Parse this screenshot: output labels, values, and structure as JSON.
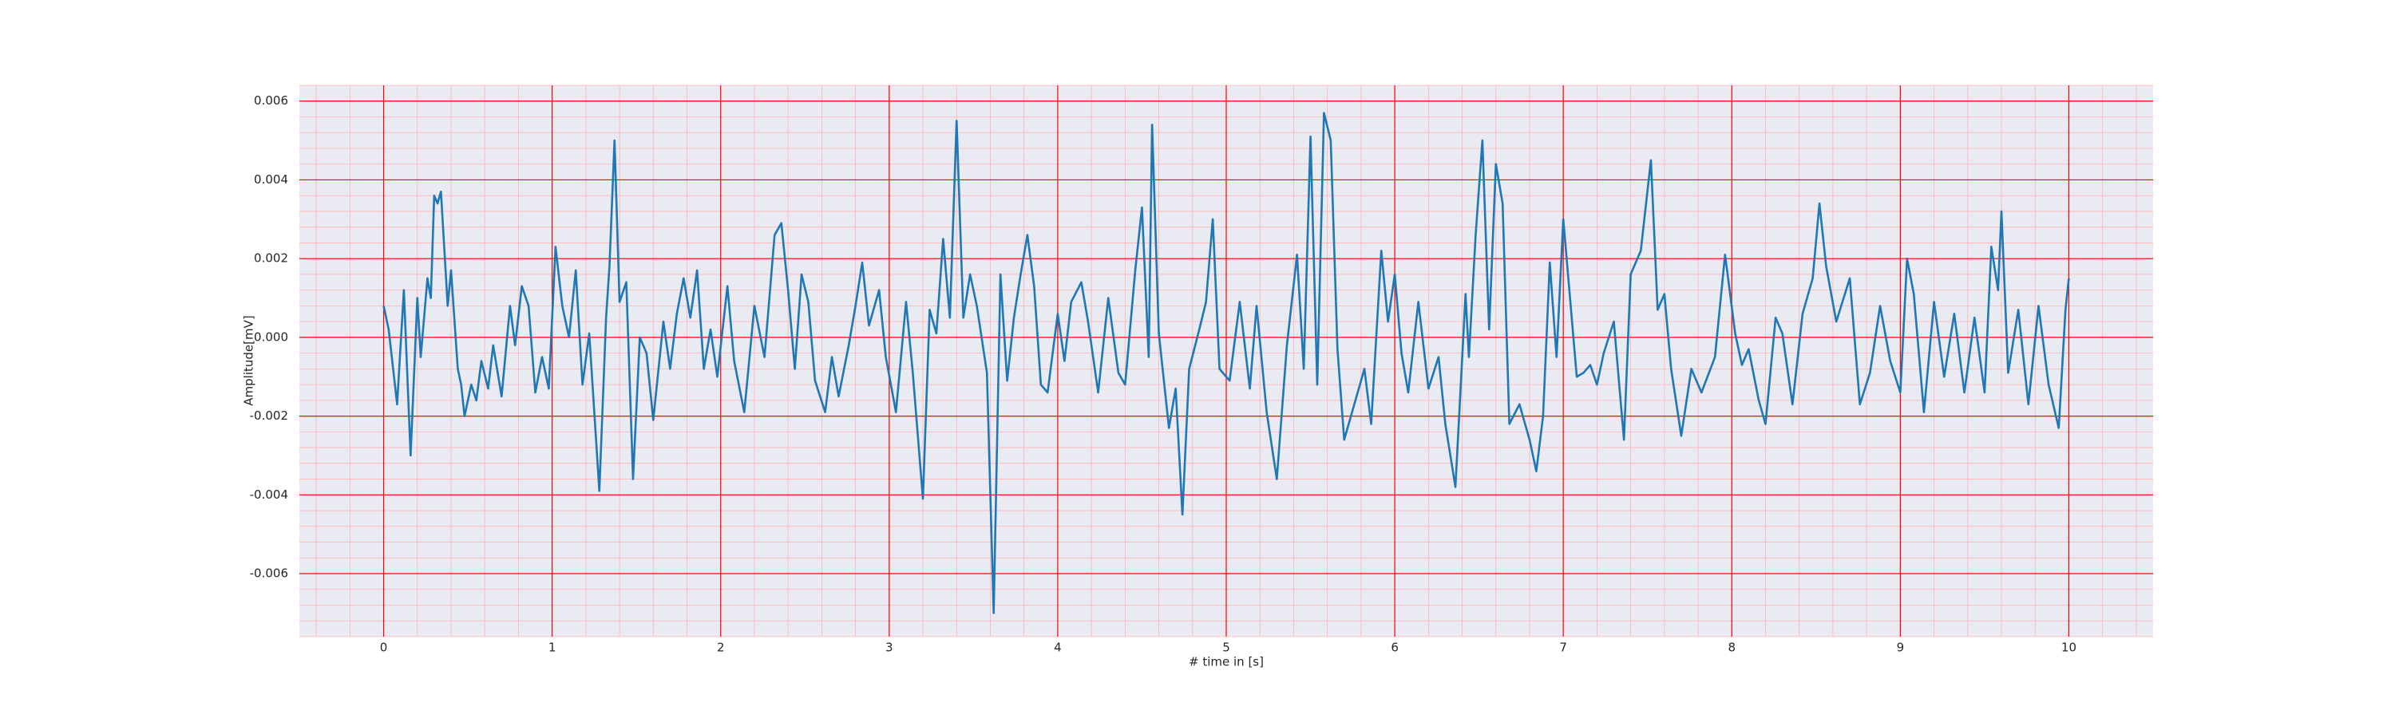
{
  "chart_data": {
    "type": "line",
    "xlabel": "# time in [s]",
    "ylabel": "Amplitude[mV]",
    "color": "#1f77b4",
    "grid": true,
    "grid_color": "#ff0000",
    "minor_grid": true,
    "xlim": [
      -0.5,
      10.5
    ],
    "ylim": [
      -0.0076,
      0.0064
    ],
    "xticks": [
      0,
      1,
      2,
      3,
      4,
      5,
      6,
      7,
      8,
      9,
      10
    ],
    "yticks": [
      -0.006,
      -0.004,
      -0.002,
      {
        "value": 0,
        "label": "0.000"
      },
      0.002,
      0.004,
      0.006
    ],
    "x": [
      0,
      0.03,
      0.08,
      0.12,
      0.16,
      0.2,
      0.22,
      0.26,
      0.28,
      0.3,
      0.32,
      0.34,
      0.38,
      0.4,
      0.44,
      0.46,
      0.48,
      0.52,
      0.55,
      0.58,
      0.62,
      0.65,
      0.7,
      0.75,
      0.78,
      0.82,
      0.86,
      0.9,
      0.94,
      0.98,
      1.02,
      1.06,
      1.1,
      1.14,
      1.18,
      1.22,
      1.28,
      1.32,
      1.34,
      1.37,
      1.4,
      1.44,
      1.48,
      1.52,
      1.56,
      1.6,
      1.66,
      1.7,
      1.74,
      1.78,
      1.82,
      1.86,
      1.9,
      1.94,
      1.98,
      2.04,
      2.08,
      2.14,
      2.2,
      2.26,
      2.32,
      2.36,
      2.4,
      2.44,
      2.48,
      2.52,
      2.56,
      2.62,
      2.66,
      2.7,
      2.76,
      2.8,
      2.84,
      2.88,
      2.94,
      2.98,
      3.04,
      3.1,
      3.14,
      3.2,
      3.24,
      3.28,
      3.32,
      3.36,
      3.4,
      3.44,
      3.48,
      3.52,
      3.58,
      3.62,
      3.66,
      3.7,
      3.74,
      3.78,
      3.82,
      3.86,
      3.9,
      3.94,
      4.0,
      4.04,
      4.08,
      4.14,
      4.18,
      4.24,
      4.3,
      4.36,
      4.4,
      4.46,
      4.5,
      4.54,
      4.56,
      4.6,
      4.66,
      4.7,
      4.74,
      4.78,
      4.84,
      4.88,
      4.92,
      4.96,
      5.02,
      5.08,
      5.14,
      5.18,
      5.24,
      5.3,
      5.36,
      5.42,
      5.46,
      5.5,
      5.54,
      5.58,
      5.62,
      5.66,
      5.7,
      5.76,
      5.82,
      5.86,
      5.92,
      5.96,
      6.0,
      6.04,
      6.08,
      6.14,
      6.2,
      6.26,
      6.3,
      6.36,
      6.42,
      6.44,
      6.48,
      6.52,
      6.56,
      6.6,
      6.64,
      6.68,
      6.74,
      6.8,
      6.84,
      6.88,
      6.92,
      6.96,
      7.0,
      7.04,
      7.08,
      7.12,
      7.16,
      7.2,
      7.24,
      7.3,
      7.36,
      7.4,
      7.46,
      7.52,
      7.56,
      7.6,
      7.64,
      7.7,
      7.76,
      7.82,
      7.9,
      7.96,
      8.02,
      8.06,
      8.1,
      8.16,
      8.2,
      8.26,
      8.3,
      8.36,
      8.42,
      8.48,
      8.52,
      8.56,
      8.62,
      8.7,
      8.76,
      8.82,
      8.88,
      8.94,
      9.0,
      9.04,
      9.08,
      9.14,
      9.2,
      9.26,
      9.32,
      9.38,
      9.44,
      9.5,
      9.54,
      9.58,
      9.6,
      9.64,
      9.7,
      9.76,
      9.82,
      9.88,
      9.94,
      9.98,
      10.0
    ],
    "values": [
      0.0008,
      0.0002,
      -0.0017,
      0.0012,
      -0.003,
      0.001,
      -0.0005,
      0.0015,
      0.001,
      0.0036,
      0.0034,
      0.0037,
      0.0008,
      0.0017,
      -0.0008,
      -0.0012,
      -0.002,
      -0.0012,
      -0.0016,
      -0.0006,
      -0.0013,
      -0.0002,
      -0.0015,
      0.0008,
      -0.0002,
      0.0013,
      0.0008,
      -0.0014,
      -0.0005,
      -0.0013,
      0.0023,
      0.0008,
      0.0,
      0.0017,
      -0.0012,
      0.0001,
      -0.0039,
      0.0005,
      0.0018,
      0.005,
      0.0009,
      0.0014,
      -0.0036,
      0.0,
      -0.0004,
      -0.0021,
      0.0004,
      -0.0008,
      0.0006,
      0.0015,
      0.0005,
      0.0017,
      -0.0008,
      0.0002,
      -0.001,
      0.0013,
      -0.0006,
      -0.0019,
      0.0008,
      -0.0005,
      0.0026,
      0.0029,
      0.0012,
      -0.0008,
      0.0016,
      0.0009,
      -0.0011,
      -0.0019,
      -0.0005,
      -0.0015,
      -0.0002,
      0.0008,
      0.0019,
      0.0003,
      0.0012,
      -0.0005,
      -0.0019,
      0.0009,
      -0.0009,
      -0.0041,
      0.0007,
      0.0001,
      0.0025,
      0.0005,
      0.0055,
      0.0005,
      0.0016,
      0.0008,
      -0.0009,
      -0.007,
      0.0016,
      -0.0011,
      0.0005,
      0.0016,
      0.0026,
      0.0013,
      -0.0012,
      -0.0014,
      0.0006,
      -0.0006,
      0.0009,
      0.0014,
      0.0004,
      -0.0014,
      0.001,
      -0.0009,
      -0.0012,
      0.0017,
      0.0033,
      -0.0005,
      0.0054,
      0.0001,
      -0.0023,
      -0.0013,
      -0.0045,
      -0.0008,
      0.0002,
      0.0009,
      0.003,
      -0.0008,
      -0.0011,
      0.0009,
      -0.0013,
      0.0008,
      -0.0019,
      -0.0036,
      -0.0002,
      0.0021,
      -0.0008,
      0.0051,
      -0.0012,
      0.0057,
      0.005,
      -0.0003,
      -0.0026,
      -0.0017,
      -0.0008,
      -0.0022,
      0.0022,
      0.0004,
      0.0016,
      -0.0004,
      -0.0014,
      0.0009,
      -0.0013,
      -0.0005,
      -0.0022,
      -0.0038,
      0.0011,
      -0.0005,
      0.0026,
      0.005,
      0.0002,
      0.0044,
      0.0034,
      -0.0022,
      -0.0017,
      -0.0026,
      -0.0034,
      -0.002,
      0.0019,
      -0.0005,
      0.003,
      0.001,
      -0.001,
      -0.0009,
      -0.0007,
      -0.0012,
      -0.0004,
      0.0004,
      -0.0026,
      0.0016,
      0.0022,
      0.0045,
      0.0007,
      0.0011,
      -0.0008,
      -0.0025,
      -0.0008,
      -0.0014,
      -0.0005,
      0.0021,
      0.0001,
      -0.0007,
      -0.0003,
      -0.0016,
      -0.0022,
      0.0005,
      0.0001,
      -0.0017,
      0.0006,
      0.0015,
      0.0034,
      0.0018,
      0.0004,
      0.0015,
      -0.0017,
      -0.0009,
      0.0008,
      -0.0006,
      -0.0014,
      0.002,
      0.0011,
      -0.0019,
      0.0009,
      -0.001,
      0.0006,
      -0.0014,
      0.0005,
      -0.0014,
      0.0023,
      0.0012,
      0.0032,
      -0.0009,
      0.0007,
      -0.0017,
      0.0008,
      -0.0012,
      -0.0023,
      0.0007,
      0.0015
    ]
  }
}
